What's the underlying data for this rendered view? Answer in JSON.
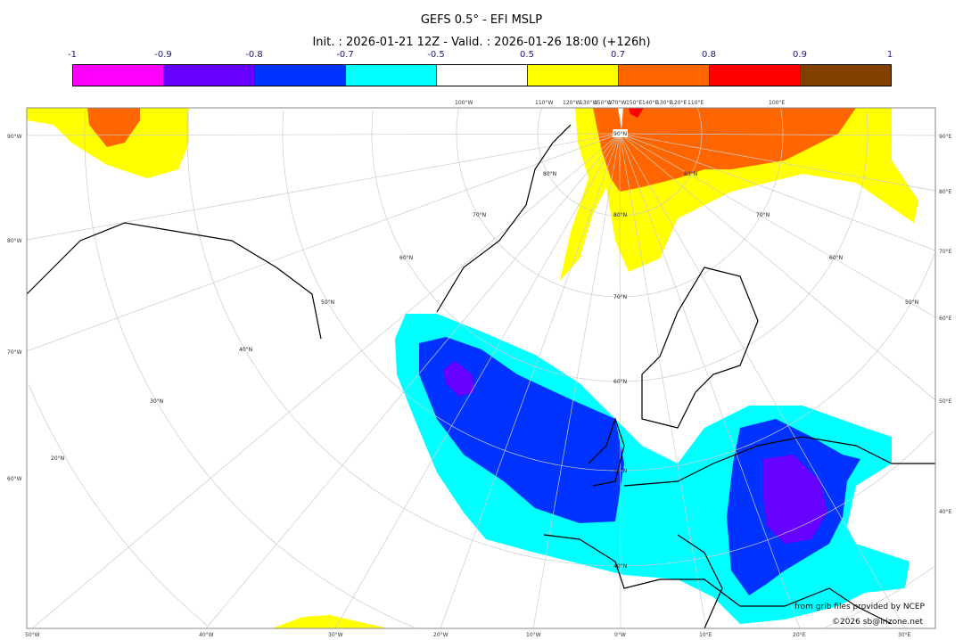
{
  "title": "GEFS 0.5° - EFI MSLP",
  "subtitle": "Init. : 2026-01-21 12Z - Valid. : 2026-01-26 18:00 (+126h)",
  "colorbar": {
    "ticks": [
      "-1",
      "-0.9",
      "-0.8",
      "-0.7",
      "-0.5",
      "0.5",
      "0.7",
      "0.8",
      "0.9",
      "1"
    ],
    "colors": [
      "#ff00ff",
      "#6600ff",
      "#0033ff",
      "#00ffff",
      "#ffffff",
      "#ffff00",
      "#ff6600",
      "#ff0000",
      "#804000"
    ]
  },
  "axis_labels": {
    "top": [
      "100°W",
      "110°W",
      "120°W",
      "130°W",
      "150°W",
      "170°W",
      "150°E",
      "140°E",
      "130°E",
      "120°E",
      "110°E",
      "100°E"
    ],
    "left": [
      "90°W",
      "80°W",
      "70°W",
      "60°W"
    ],
    "right": [
      "90°E",
      "80°E",
      "70°E",
      "60°E",
      "50°E",
      "40°E"
    ],
    "bottom": [
      "50°W",
      "40°W",
      "30°W",
      "20°W",
      "10°W",
      "0°W",
      "10°E",
      "20°E",
      "30°E"
    ],
    "latitudes": [
      "90°N",
      "80°N",
      "70°N",
      "60°N",
      "50°N",
      "40°N",
      "30°N",
      "20°N"
    ]
  },
  "credits": {
    "source": "from grib files provided by NCEP",
    "copyright": "©2026 sb@irizone.net"
  }
}
